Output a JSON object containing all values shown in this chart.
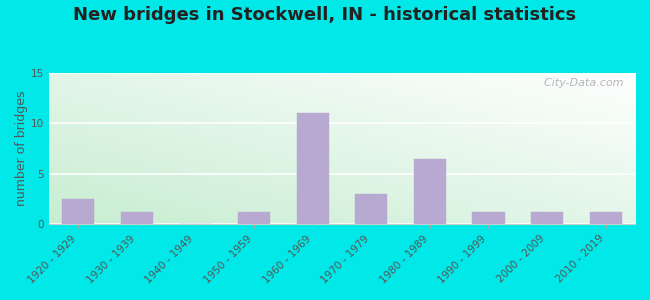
{
  "title": "New bridges in Stockwell, IN - historical statistics",
  "ylabel": "number of bridges",
  "categories": [
    "1920 - 1929",
    "1930 - 1939",
    "1940 - 1949",
    "1950 - 1959",
    "1960 - 1969",
    "1970 - 1979",
    "1980 - 1989",
    "1990 - 1999",
    "2000 - 2009",
    "2010 - 2019"
  ],
  "values": [
    2.5,
    1.2,
    0,
    1.2,
    11,
    3,
    6.5,
    1.2,
    1.2,
    1.2
  ],
  "bar_color": "#b8a9d0",
  "ylim": [
    0,
    15
  ],
  "yticks": [
    0,
    5,
    10,
    15
  ],
  "outer_bg": "#00e8e8",
  "title_fontsize": 13,
  "axis_label_fontsize": 9,
  "tick_fontsize": 7.5,
  "watermark": "  City-Data.com"
}
